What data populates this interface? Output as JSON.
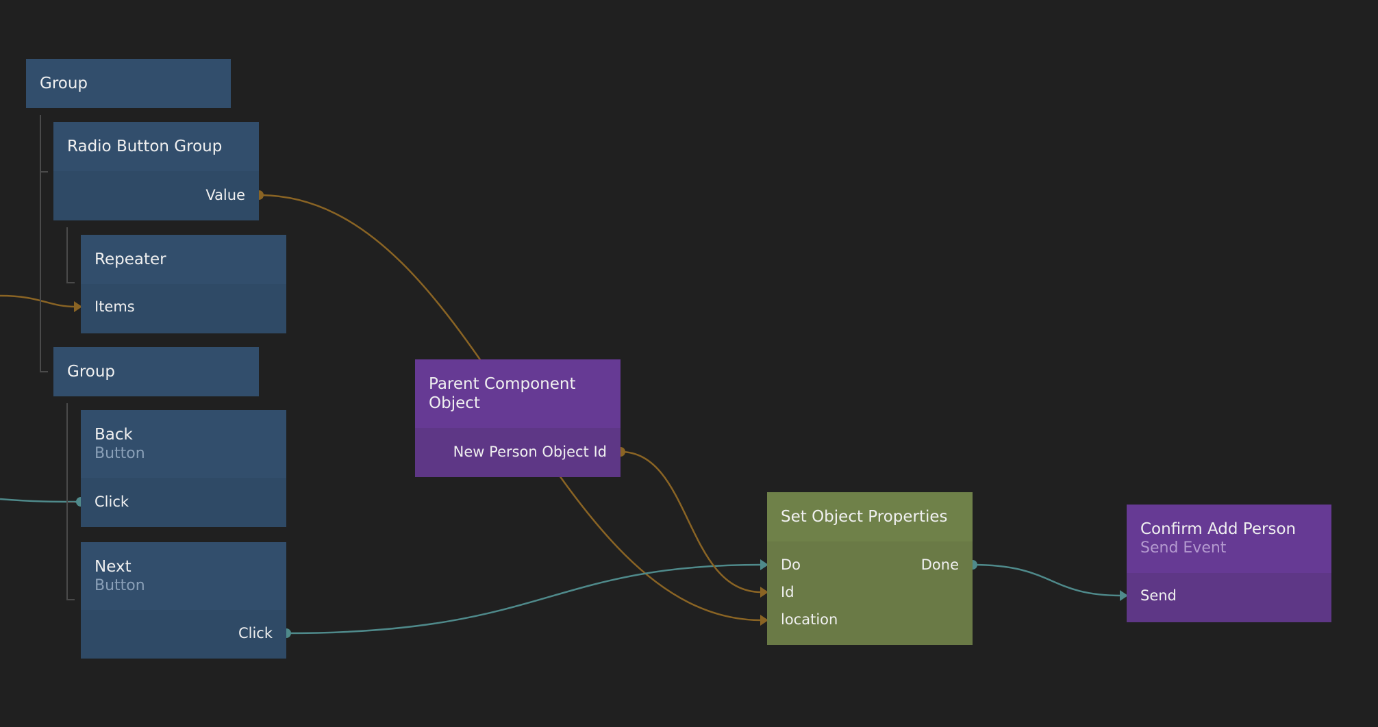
{
  "colors": {
    "background": "#202020",
    "visual_node": "#324e6c",
    "component_node": "#663a94",
    "data_node": "#6f8149",
    "data_wire": "#8a6424",
    "signal_wire": "#4f8a8b"
  },
  "nodes": {
    "group1": {
      "title": "Group"
    },
    "radio_group": {
      "title": "Radio Button Group",
      "ports": {
        "value": "Value"
      }
    },
    "repeater": {
      "title": "Repeater",
      "ports": {
        "items": "Items"
      }
    },
    "group2": {
      "title": "Group"
    },
    "back": {
      "title": "Back",
      "subtitle": "Button",
      "ports": {
        "click": "Click"
      }
    },
    "next": {
      "title": "Next",
      "subtitle": "Button",
      "ports": {
        "click": "Click"
      }
    },
    "parent": {
      "title": "Parent Component Object",
      "ports": {
        "new_person_id": "New Person Object Id"
      }
    },
    "set_props": {
      "title": "Set Object Properties",
      "ports": {
        "do": "Do",
        "id": "Id",
        "location": "location",
        "done": "Done"
      }
    },
    "confirm": {
      "title": "Confirm Add Person",
      "subtitle": "Send Event",
      "ports": {
        "send": "Send"
      }
    }
  }
}
